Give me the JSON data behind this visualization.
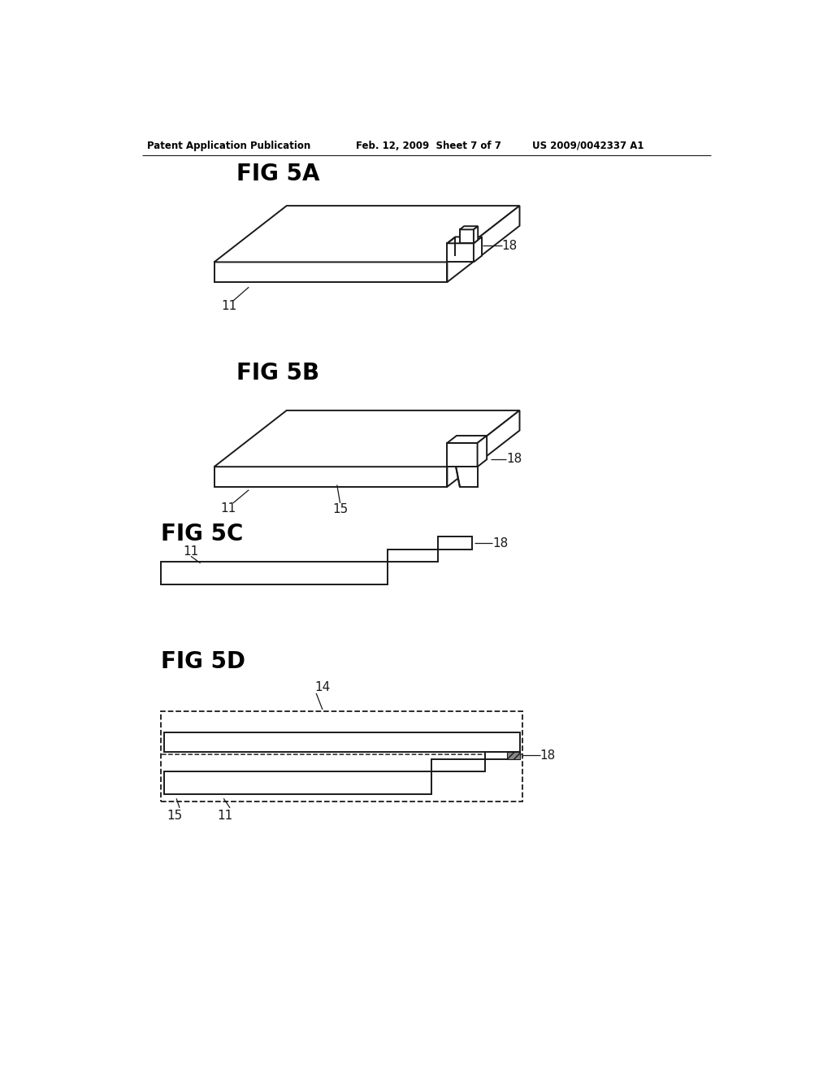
{
  "bg_color": "#ffffff",
  "line_color": "#1a1a1a",
  "header_left": "Patent Application Publication",
  "header_mid": "Feb. 12, 2009  Sheet 7 of 7",
  "header_right": "US 2009/0042337 A1",
  "lw": 1.4
}
